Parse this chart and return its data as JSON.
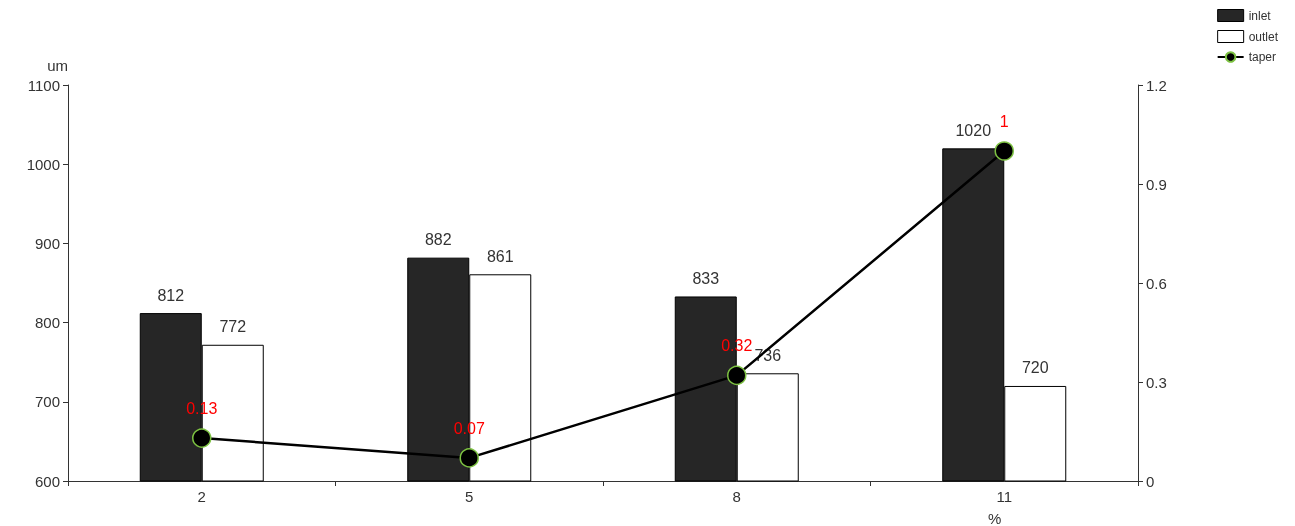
{
  "chart_data": {
    "type": "bar",
    "xlabel": "%",
    "ylabel": "um",
    "categories": [
      "2",
      "5",
      "8",
      "11"
    ],
    "series": [
      {
        "name": "inlet",
        "color": "#262626",
        "values": [
          812,
          882,
          833,
          1020
        ]
      },
      {
        "name": "outlet",
        "color": "#ffffff",
        "values": [
          772,
          861,
          736,
          720
        ]
      },
      {
        "name": "taper",
        "type": "line",
        "axis": "y2",
        "color": "#000000",
        "values": [
          0.13,
          0.07,
          0.32,
          1
        ]
      }
    ],
    "ylim": [
      600,
      1100
    ],
    "yticks": [
      600,
      700,
      800,
      900,
      1000,
      1100
    ],
    "y2lim": [
      0,
      1.2
    ],
    "y2ticks": [
      0,
      0.3,
      0.6,
      0.9,
      1.2
    ],
    "data_labels": true,
    "grid": false,
    "legend": "top right",
    "marker": "circle",
    "line_style": "solid"
  }
}
